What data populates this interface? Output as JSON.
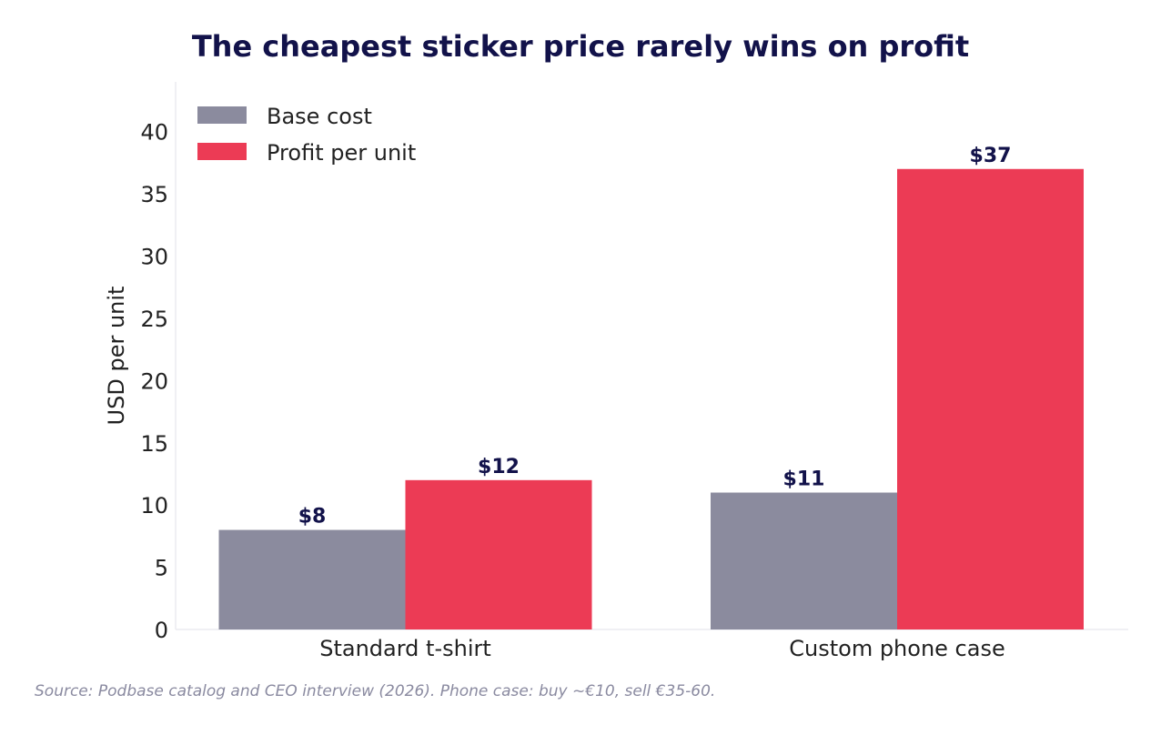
{
  "chart_data": {
    "type": "bar",
    "title": "The cheapest sticker price rarely wins on profit",
    "xlabel": "",
    "ylabel": "USD per unit",
    "categories": [
      "Standard t-shirt",
      "Custom phone case"
    ],
    "series": [
      {
        "name": "Base cost",
        "color": "#8b8b9e",
        "values": [
          8,
          11
        ],
        "labels": [
          "$8",
          "$11"
        ]
      },
      {
        "name": "Profit per unit",
        "color": "#ec3b55",
        "values": [
          12,
          37
        ],
        "labels": [
          "$12",
          "$37"
        ]
      }
    ],
    "ylim": [
      0,
      44
    ],
    "yticks": [
      0,
      5,
      10,
      15,
      20,
      25,
      30,
      35,
      40
    ],
    "grid": false,
    "legend_position": "top-left"
  },
  "source_note": "Source: Podbase catalog and CEO interview (2026). Phone case: buy ~€10, sell €35-60."
}
